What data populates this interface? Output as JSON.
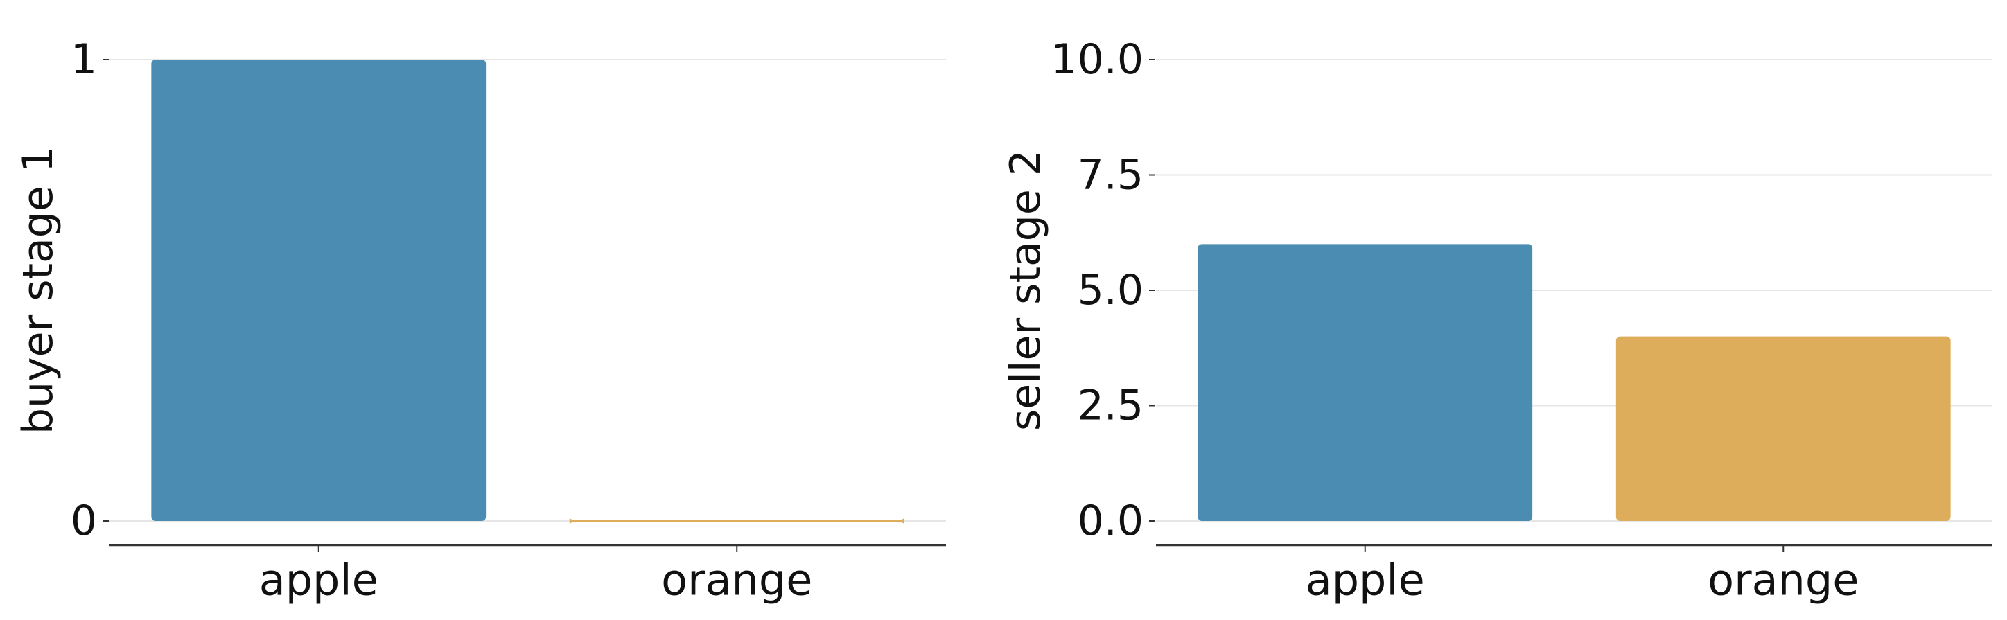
{
  "chart_data": [
    {
      "type": "bar",
      "categories": [
        "apple",
        "orange"
      ],
      "values": [
        1,
        0
      ],
      "ylabel": "buyer stage 1",
      "xlabel": "",
      "ylim": [
        0,
        1
      ],
      "yticks": [
        0,
        1
      ],
      "ytick_labels": [
        "0",
        "1"
      ],
      "grid": "horizontal",
      "colors": [
        "#4a8cb2",
        "#ddad5c"
      ]
    },
    {
      "type": "bar",
      "categories": [
        "apple",
        "orange"
      ],
      "values": [
        6,
        4
      ],
      "ylabel": "seller stage 2",
      "xlabel": "",
      "ylim": [
        0,
        10
      ],
      "yticks": [
        0,
        2.5,
        5,
        7.5,
        10
      ],
      "ytick_labels": [
        "0.0",
        "2.5",
        "5.0",
        "7.5",
        "10.0"
      ],
      "grid": "horizontal",
      "colors": [
        "#4a8cb2",
        "#ddad5c"
      ]
    }
  ]
}
